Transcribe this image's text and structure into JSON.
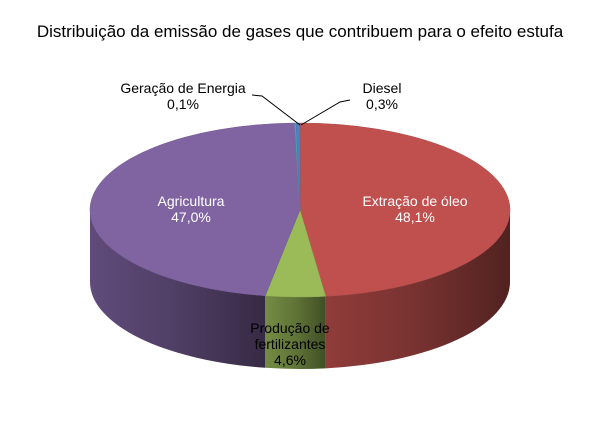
{
  "chart_data": {
    "type": "pie",
    "style": "3d",
    "title": "Distribuição da emissão de gases que contribuem para o efeito estufa",
    "slices": [
      {
        "label": "Extração de óleo",
        "value_label": "48,1%",
        "value": 48.1,
        "color": "#C0504D"
      },
      {
        "label": "Produção de fertilizantes",
        "value_label": "4,6%",
        "value": 4.6,
        "color": "#9BBB59"
      },
      {
        "label": "Agricultura",
        "value_label": "47,0%",
        "value": 47.0,
        "color": "#8064A2"
      },
      {
        "label": "Geração de Energia",
        "value_label": "0,1%",
        "value": 0.1,
        "color": "#4BACC6"
      },
      {
        "label": "Diesel",
        "value_label": "0,3%",
        "value": 0.3,
        "color": "#4F81BD"
      }
    ],
    "legend": "none"
  }
}
